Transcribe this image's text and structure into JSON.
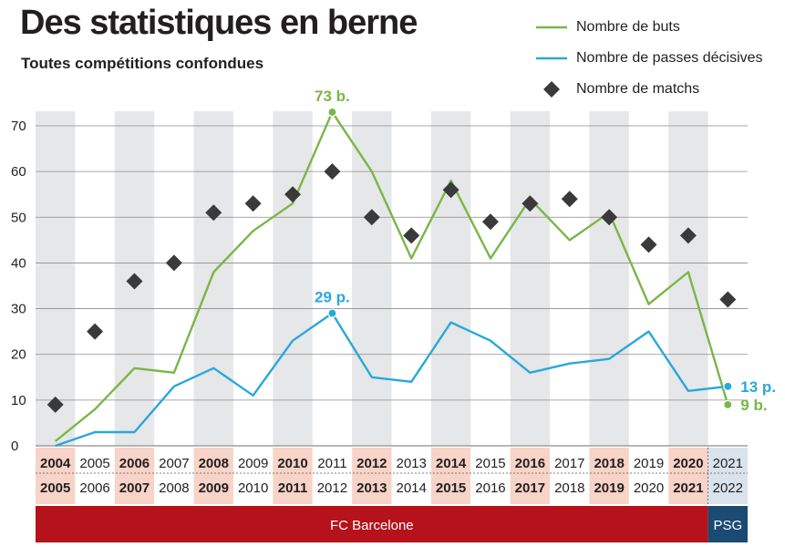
{
  "header": {
    "title": "Des statistiques en berne",
    "subtitle": "Toutes compétitions confondues"
  },
  "legend": {
    "goals": "Nombre de buts",
    "assists": "Nombre de passes décisives",
    "matches": "Nombre de matchs"
  },
  "colors": {
    "goals": "#7ab648",
    "assists": "#29a8dc",
    "matches": "#3a3a3a",
    "barca": "#b5121b",
    "psg": "#1b4a72",
    "band_shade": "#e6e7e8",
    "cat_highlight": "#f7d3c8"
  },
  "chart_data": {
    "type": "line",
    "title": "Des statistiques en berne",
    "subtitle": "Toutes compétitions confondues",
    "categories_top": [
      "2004",
      "2005",
      "2006",
      "2007",
      "2008",
      "2009",
      "2010",
      "2011",
      "2012",
      "2013",
      "2014",
      "2015",
      "2016",
      "2017",
      "2018",
      "2019",
      "2020",
      "2021"
    ],
    "categories_bottom": [
      "2005",
      "2006",
      "2007",
      "2008",
      "2009",
      "2010",
      "2011",
      "2012",
      "2013",
      "2014",
      "2015",
      "2016",
      "2017",
      "2018",
      "2019",
      "2020",
      "2021",
      "2022"
    ],
    "y_ticks": [
      0,
      10,
      20,
      30,
      40,
      50,
      60,
      70
    ],
    "ylim": [
      0,
      70
    ],
    "grid": true,
    "legend_position": "top-right",
    "series": [
      {
        "name": "Nombre de buts",
        "type": "line",
        "color_key": "goals",
        "values": [
          1,
          8,
          17,
          16,
          38,
          47,
          53,
          73,
          60,
          41,
          58,
          41,
          54,
          45,
          51,
          31,
          38,
          9
        ]
      },
      {
        "name": "Nombre de passes décisives",
        "type": "line",
        "color_key": "assists",
        "values": [
          0,
          3,
          3,
          13,
          17,
          11,
          23,
          29,
          15,
          14,
          27,
          23,
          16,
          18,
          19,
          25,
          12,
          13
        ]
      },
      {
        "name": "Nombre de matchs",
        "type": "scatter",
        "marker": "diamond",
        "color_key": "matches",
        "values": [
          9,
          25,
          36,
          40,
          51,
          53,
          55,
          60,
          50,
          46,
          56,
          49,
          53,
          54,
          50,
          44,
          46,
          32
        ]
      }
    ],
    "annotations": [
      {
        "series": 0,
        "index": 7,
        "text": "73 b."
      },
      {
        "series": 1,
        "index": 7,
        "text": "29 p."
      },
      {
        "series": 1,
        "index": 17,
        "text": "13 p."
      },
      {
        "series": 0,
        "index": 17,
        "text": "9 b."
      }
    ],
    "clubs": [
      {
        "name": "FC Barcelone",
        "from_index": 0,
        "to_index": 16
      },
      {
        "name": "PSG",
        "from_index": 17,
        "to_index": 17
      }
    ]
  }
}
